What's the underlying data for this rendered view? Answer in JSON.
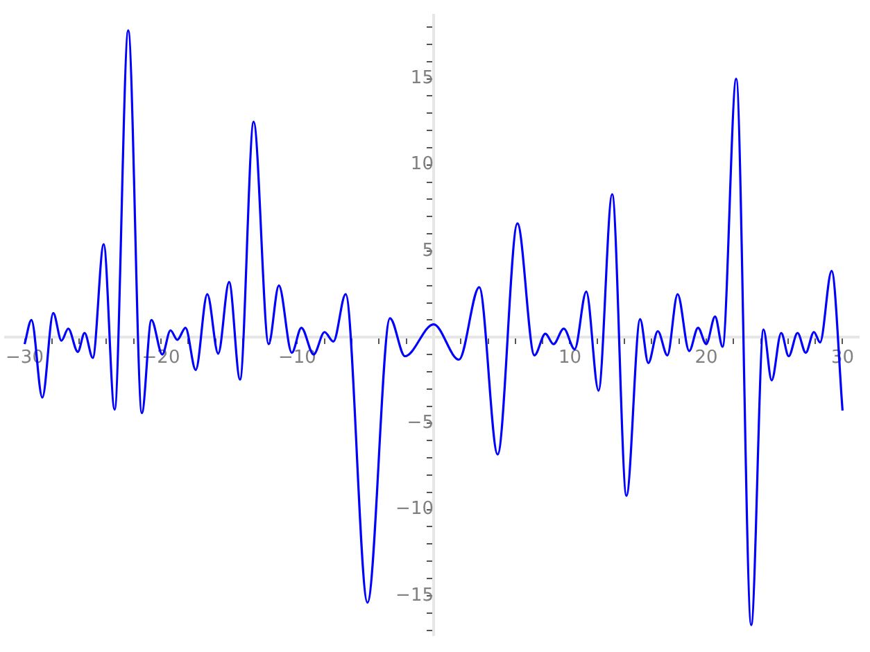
{
  "chart_data": {
    "type": "line",
    "marker": "none",
    "grid": false,
    "legend": false,
    "x": [
      -30,
      -29.5,
      -28.7,
      -27.9,
      -27.3,
      -26.8,
      -26.1,
      -25.6,
      -25.0,
      -24.2,
      -23.4,
      -22.4,
      -21.4,
      -20.7,
      -19.9,
      -19.3,
      -18.8,
      -18.2,
      -17.45,
      -16.6,
      -15.8,
      -15.0,
      -14.2,
      -13.2,
      -12.1,
      -11.35,
      -10.4,
      -9.7,
      -8.8,
      -8.0,
      -7.35,
      -6.45,
      -4.85,
      -3.2,
      -2.1,
      0,
      1.86,
      3.35,
      4.7,
      6.15,
      7.4,
      8.2,
      8.8,
      9.55,
      10.35,
      11.2,
      12.1,
      13.1,
      14.15,
      15.15,
      15.75,
      16.45,
      17.15,
      17.9,
      18.75,
      19.4,
      20.0,
      20.65,
      21.2,
      22.2,
      23.3,
      24.2,
      24.8,
      25.5,
      26.05,
      26.7,
      27.3,
      27.9,
      28.35,
      29.2,
      30
    ],
    "series": [
      {
        "color": "#0000ff",
        "line_style": "solid",
        "values": [
          -0.4,
          1.0,
          -3.5,
          1.4,
          -0.2,
          0.5,
          -0.85,
          0.25,
          -1.2,
          5.4,
          -4.2,
          17.8,
          -4.4,
          1.0,
          -1.0,
          0.4,
          -0.15,
          0.55,
          -1.9,
          2.5,
          -0.95,
          3.2,
          -2.45,
          12.5,
          -0.4,
          3.0,
          -0.9,
          0.55,
          -1.0,
          0.3,
          -0.25,
          2.5,
          -15.4,
          1.1,
          -1.1,
          0.75,
          -1.3,
          2.9,
          -6.8,
          6.6,
          -1.05,
          0.2,
          -0.4,
          0.5,
          -0.7,
          2.65,
          -3.1,
          8.3,
          -9.2,
          1.05,
          -1.5,
          0.35,
          -1.05,
          2.5,
          -0.8,
          0.55,
          -0.4,
          1.2,
          -0.55,
          15.0,
          -16.7,
          0.45,
          -2.5,
          0.25,
          -1.1,
          0.25,
          -0.9,
          0.3,
          -0.3,
          3.85,
          -4.25
        ]
      }
    ],
    "xlim": [
      -31.4,
      31.2
    ],
    "xticks": [
      {
        "value": -30,
        "label": "−30"
      },
      {
        "value": -28,
        "label": null
      },
      {
        "value": -26,
        "label": null
      },
      {
        "value": -24,
        "label": null
      },
      {
        "value": -22,
        "label": null
      },
      {
        "value": -20,
        "label": "−20"
      },
      {
        "value": -18,
        "label": null
      },
      {
        "value": -16,
        "label": null
      },
      {
        "value": -14,
        "label": null
      },
      {
        "value": -12,
        "label": null
      },
      {
        "value": -10,
        "label": "−10"
      },
      {
        "value": -8,
        "label": null
      },
      {
        "value": -6,
        "label": null
      },
      {
        "value": -4,
        "label": null
      },
      {
        "value": -2,
        "label": null
      },
      {
        "value": 2,
        "label": null
      },
      {
        "value": 4,
        "label": null
      },
      {
        "value": 6,
        "label": null
      },
      {
        "value": 8,
        "label": null
      },
      10,
      {
        "value": 12,
        "label": null
      },
      {
        "value": 14,
        "label": null
      },
      {
        "value": 16,
        "label": null
      },
      {
        "value": 18,
        "label": null
      },
      20,
      {
        "value": 22,
        "label": null
      },
      {
        "value": 24,
        "label": null
      },
      {
        "value": 26,
        "label": null
      },
      {
        "value": 28,
        "label": null
      },
      30
    ],
    "ylim": [
      -17.3,
      18.7
    ],
    "yticks": [
      {
        "value": -17,
        "label": null
      },
      {
        "value": -16,
        "label": null
      },
      {
        "value": -15,
        "label": "−15"
      },
      {
        "value": -14,
        "label": null
      },
      {
        "value": -13,
        "label": null
      },
      {
        "value": -12,
        "label": null
      },
      {
        "value": -11,
        "label": null
      },
      {
        "value": -10,
        "label": "−10"
      },
      {
        "value": -9,
        "label": null
      },
      {
        "value": -8,
        "label": null
      },
      {
        "value": -7,
        "label": null
      },
      {
        "value": -6,
        "label": null
      },
      {
        "value": -5,
        "label": "−5"
      },
      {
        "value": -4,
        "label": null
      },
      {
        "value": -3,
        "label": null
      },
      {
        "value": -2,
        "label": null
      },
      {
        "value": -1,
        "label": null
      },
      {
        "value": 1,
        "label": null
      },
      {
        "value": 2,
        "label": null
      },
      {
        "value": 3,
        "label": null
      },
      {
        "value": 4,
        "label": null
      },
      5,
      {
        "value": 6,
        "label": null
      },
      {
        "value": 7,
        "label": null
      },
      {
        "value": 8,
        "label": null
      },
      {
        "value": 9,
        "label": null
      },
      10,
      {
        "value": 11,
        "label": null
      },
      {
        "value": 12,
        "label": null
      },
      {
        "value": 13,
        "label": null
      },
      {
        "value": 14,
        "label": null
      },
      15,
      {
        "value": 16,
        "label": null
      },
      {
        "value": 17,
        "label": null
      },
      {
        "value": 18,
        "label": null
      }
    ]
  }
}
